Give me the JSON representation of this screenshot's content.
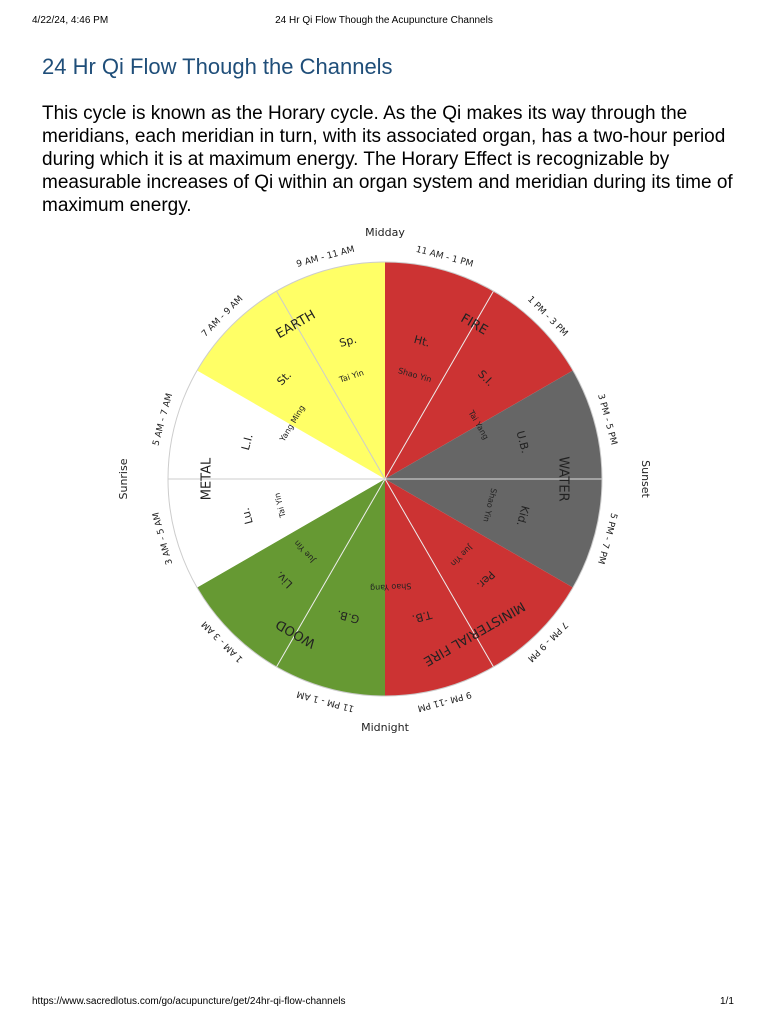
{
  "header": {
    "date": "4/22/24, 4:46 PM",
    "title": "24 Hr Qi Flow Though the Acupuncture Channels"
  },
  "heading": "24 Hr Qi Flow Though the Channels",
  "paragraph": "This cycle is known as the Horary cycle. As the Qi makes its way through the meridians, each meridian in turn, with its associated organ, has a two-hour period during which it is at maximum energy. The Horary Effect is recognizable by measurable increases of Qi within an organ system and meridian during its time of maximum energy.",
  "wheel": {
    "directions": [
      "Midday",
      "Sunset",
      "Midnight",
      "Sunrise"
    ],
    "times": [
      "11 AM - 1 PM",
      "1 PM - 3 PM",
      "3 PM - 5 PM",
      "5 PM - 7 PM",
      "7 PM - 9 PM",
      "9 PM -11 PM",
      "11 PM - 1 AM",
      "1 AM - 3 AM",
      "3 AM - 5 AM",
      "5 AM - 7 AM",
      "7 AM - 9 AM",
      "9 AM - 11 AM"
    ],
    "elements": [
      "FIRE",
      "WATER",
      "MINISTERIAL FIRE",
      "WOOD",
      "METAL",
      "EARTH"
    ],
    "organs": [
      "Ht.",
      "S.I.",
      "U.B.",
      "Kid.",
      "Per.",
      "T.B.",
      "G.B.",
      "Liv.",
      "Lu.",
      "L.I.",
      "St.",
      "Sp."
    ],
    "channels": [
      "Shao Yin",
      "Tai Yang",
      "Shao Yin",
      "Jue Yin",
      "Shao Yang",
      "Jue Yin",
      "Tai Yin",
      "Yang Ming",
      "Tai Yin"
    ]
  },
  "footer": {
    "url": "https://www.sacredlotus.com/go/acupuncture/get/24hr-qi-flow-channels",
    "page": "1/1"
  }
}
